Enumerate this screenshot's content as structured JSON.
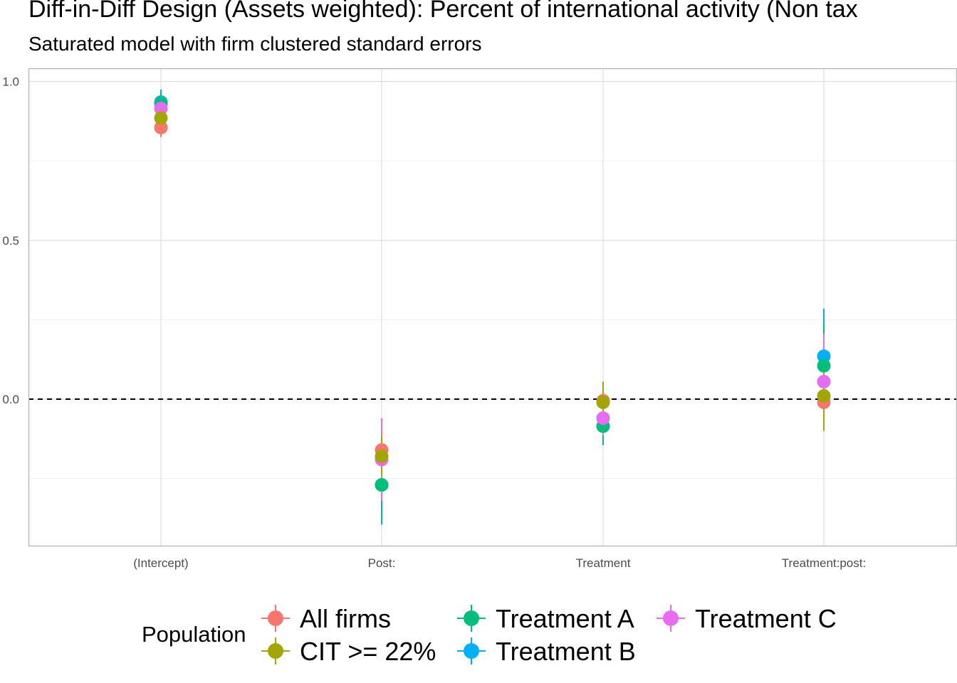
{
  "title": "Diff-in-Diff Design (Assets weighted): Percent of international activity (Non tax",
  "subtitle": "Saturated model with firm clustered standard errors",
  "legend": {
    "title": "Population",
    "items": [
      {
        "label": "All firms",
        "color": "#F8766D"
      },
      {
        "label": "CIT >= 22%",
        "color": "#A3A500"
      },
      {
        "label": "Treatment A",
        "color": "#00BF7D"
      },
      {
        "label": "Treatment B",
        "color": "#00B0F6"
      },
      {
        "label": "Treatment C",
        "color": "#E76BF3"
      }
    ]
  },
  "chart_data": {
    "type": "scatter",
    "subtype": "coefficient plot with error bars",
    "categories": [
      "(Intercept)",
      "Post:",
      "Treatment",
      "Treatment:post:"
    ],
    "y_ticks": [
      "0.0",
      "0.5",
      "1.0"
    ],
    "ylim": [
      -0.46,
      1.04
    ],
    "reference_line": {
      "y": 0,
      "style": "dashed"
    },
    "grid": true,
    "legend_position": "bottom",
    "series": [
      {
        "name": "All firms",
        "color": "#F8766D",
        "values": [
          0.855,
          -0.16,
          -0.005,
          -0.01
        ],
        "lower": [
          0.825,
          -0.215,
          -0.05,
          -0.085
        ],
        "upper": [
          0.885,
          -0.105,
          0.04,
          0.065
        ]
      },
      {
        "name": "CIT >= 22%",
        "color": "#A3A500",
        "values": [
          0.885,
          -0.18,
          -0.01,
          0.01
        ],
        "lower": [
          0.845,
          -0.245,
          -0.075,
          -0.1
        ],
        "upper": [
          0.925,
          -0.115,
          0.055,
          0.12
        ]
      },
      {
        "name": "Treatment A",
        "color": "#00BF7D",
        "values": [
          0.93,
          -0.27,
          -0.085,
          0.105
        ],
        "lower": [
          0.895,
          -0.385,
          -0.14,
          -0.03
        ],
        "upper": [
          0.965,
          -0.155,
          -0.03,
          0.24
        ]
      },
      {
        "name": "Treatment B",
        "color": "#00B0F6",
        "values": [
          0.935,
          -0.27,
          -0.085,
          0.135
        ],
        "lower": [
          0.895,
          -0.395,
          -0.145,
          -0.015
        ],
        "upper": [
          0.975,
          -0.145,
          -0.025,
          0.285
        ]
      },
      {
        "name": "Treatment C",
        "color": "#E76BF3",
        "values": [
          0.915,
          -0.19,
          -0.06,
          0.055
        ],
        "lower": [
          0.88,
          -0.32,
          -0.115,
          -0.095
        ],
        "upper": [
          0.95,
          -0.06,
          -0.005,
          0.205
        ]
      }
    ]
  }
}
